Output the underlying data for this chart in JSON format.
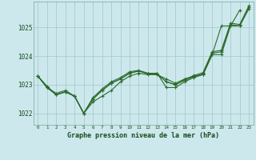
{
  "background_color": "#cce8ed",
  "grid_color": "#aacccc",
  "line_color": "#2d6a2d",
  "title": "Graphe pression niveau de la mer (hPa)",
  "xlim": [
    -0.5,
    23.5
  ],
  "ylim": [
    1021.6,
    1025.9
  ],
  "yticks": [
    1022,
    1023,
    1024,
    1025
  ],
  "xticks": [
    0,
    1,
    2,
    3,
    4,
    5,
    6,
    7,
    8,
    9,
    10,
    11,
    12,
    13,
    14,
    15,
    16,
    17,
    18,
    19,
    20,
    21,
    22,
    23
  ],
  "series": [
    [
      1023.3,
      1022.9,
      1022.65,
      1022.75,
      1022.6,
      1022.0,
      1022.5,
      1022.8,
      1023.05,
      1023.2,
      1023.4,
      1023.48,
      1023.38,
      1023.38,
      1023.1,
      1023.0,
      1023.15,
      1023.28,
      1023.38,
      1024.1,
      1024.15,
      1025.1,
      1025.05,
      1025.7
    ],
    [
      1023.3,
      1022.9,
      1022.65,
      1022.75,
      1022.6,
      1022.0,
      1022.5,
      1022.8,
      1023.05,
      1023.2,
      1023.4,
      1023.48,
      1023.38,
      1023.38,
      1023.1,
      1023.0,
      1023.18,
      1023.32,
      1023.42,
      1024.15,
      1024.2,
      1025.15,
      1025.1,
      1025.75
    ],
    [
      1023.3,
      1022.95,
      1022.65,
      1022.75,
      1022.6,
      1022.0,
      1022.55,
      1022.85,
      1023.1,
      1023.25,
      1023.45,
      1023.5,
      1023.4,
      1023.4,
      1022.9,
      1022.9,
      1023.1,
      1023.25,
      1023.35,
      1024.05,
      1024.05,
      1025.05,
      1025.05,
      1025.65
    ],
    [
      1023.3,
      1022.9,
      1022.7,
      1022.8,
      1022.6,
      1022.0,
      1022.4,
      1022.6,
      1022.8,
      1023.1,
      1023.3,
      1023.4,
      1023.35,
      1023.35,
      1023.2,
      1023.05,
      1023.2,
      1023.3,
      1023.35,
      1024.05,
      1025.05,
      1025.05,
      1025.6,
      null
    ]
  ]
}
